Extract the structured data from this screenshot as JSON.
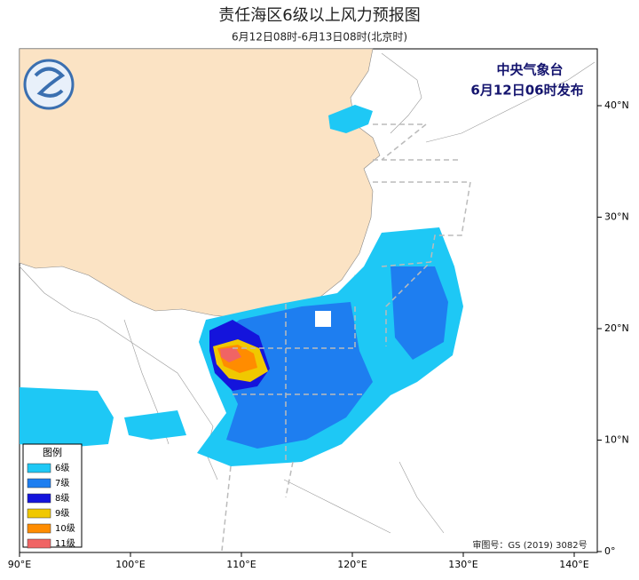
{
  "header": {
    "title": "责任海区6级以上风力预报图",
    "subtitle": "6月12日08时-6月13日08时(北京时)"
  },
  "issuer": {
    "name": "中央气象台",
    "time": "6月12日06时发布"
  },
  "map": {
    "x_labels": [
      "90°E",
      "100°E",
      "110°E",
      "120°E",
      "130°E",
      "140°E"
    ],
    "y_labels": [
      "40°N",
      "30°N",
      "20°N",
      "10°N",
      "0°"
    ]
  },
  "legend": {
    "title": "图例",
    "items": [
      {
        "label": "6级",
        "color": "#1ec8f5"
      },
      {
        "label": "7级",
        "color": "#1e7ef0"
      },
      {
        "label": "8级",
        "color": "#1414dc"
      },
      {
        "label": "9级",
        "color": "#f0c800"
      },
      {
        "label": "10级",
        "color": "#ff8c00"
      },
      {
        "label": "11级",
        "color": "#f06464"
      }
    ]
  },
  "footer": {
    "approval": "审图号：GS (2019) 3082号"
  }
}
